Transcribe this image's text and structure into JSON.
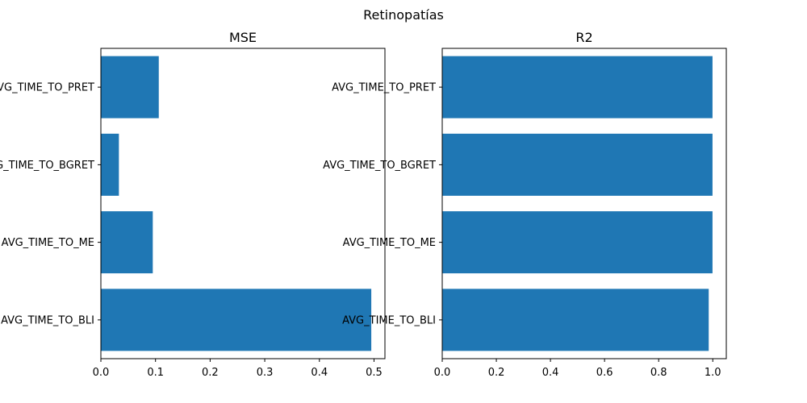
{
  "suptitle": "Retinopatías",
  "colors": {
    "bar": "#1f77b4",
    "axis": "#000000"
  },
  "chart_data": [
    {
      "type": "bar",
      "orientation": "horizontal",
      "title": "MSE",
      "categories": [
        "AVG_TIME_TO_PRET",
        "AVG_TIME_TO_BGRET",
        "AVG_TIME_TO_ME",
        "AVG_TIME_TO_BLI"
      ],
      "values": [
        0.106,
        0.033,
        0.095,
        0.495
      ],
      "xlim": [
        0,
        0.52
      ],
      "xticks": [
        0.0,
        0.1,
        0.2,
        0.3,
        0.4,
        0.5
      ],
      "xtick_labels": [
        "0.0",
        "0.1",
        "0.2",
        "0.3",
        "0.4",
        "0.5"
      ],
      "xlabel": "",
      "ylabel": "",
      "grid": false
    },
    {
      "type": "bar",
      "orientation": "horizontal",
      "title": "R2",
      "categories": [
        "AVG_TIME_TO_PRET",
        "AVG_TIME_TO_BGRET",
        "AVG_TIME_TO_ME",
        "AVG_TIME_TO_BLI"
      ],
      "values": [
        0.999,
        0.999,
        0.999,
        0.985
      ],
      "xlim": [
        0,
        1.05
      ],
      "xticks": [
        0.0,
        0.2,
        0.4,
        0.6,
        0.8,
        1.0
      ],
      "xtick_labels": [
        "0.0",
        "0.2",
        "0.4",
        "0.6",
        "0.8",
        "1.0"
      ],
      "xlabel": "",
      "ylabel": "",
      "grid": false
    }
  ]
}
